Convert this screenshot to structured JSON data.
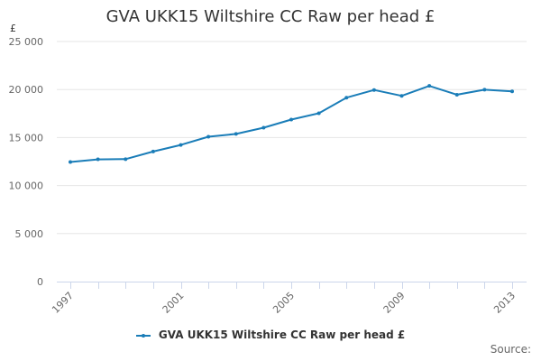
{
  "chart_data": {
    "type": "line",
    "title": "GVA UKK15 Wiltshire CC Raw per head £",
    "ylabel": "£",
    "xlabel": "",
    "x": [
      1997,
      1998,
      1999,
      2000,
      2001,
      2002,
      2003,
      2004,
      2005,
      2006,
      2007,
      2008,
      2009,
      2010,
      2011,
      2012,
      2013
    ],
    "series": [
      {
        "name": "GVA UKK15 Wiltshire CC Raw per head £",
        "values": [
          12450,
          12730,
          12750,
          13540,
          14230,
          15080,
          15380,
          16020,
          16870,
          17530,
          19150,
          19950,
          19340,
          20380,
          19460,
          19980,
          19810
        ]
      }
    ],
    "ylim": [
      0,
      25000
    ],
    "yticks": [
      0,
      5000,
      10000,
      15000,
      20000,
      25000
    ],
    "ytick_labels": [
      "0",
      "5 000",
      "10 000",
      "15 000",
      "20 000",
      "25 000"
    ],
    "xticks": [
      1997,
      2001,
      2005,
      2009,
      2013
    ],
    "xtick_labels": [
      "1997",
      "2001",
      "2005",
      "2009",
      "2013"
    ],
    "grid": true,
    "legend_position": "bottom-center",
    "color": "#1a7db8",
    "gridline_color": "#e6e6e6",
    "axis_color": "#ccd6eb"
  },
  "credits": "Source:"
}
